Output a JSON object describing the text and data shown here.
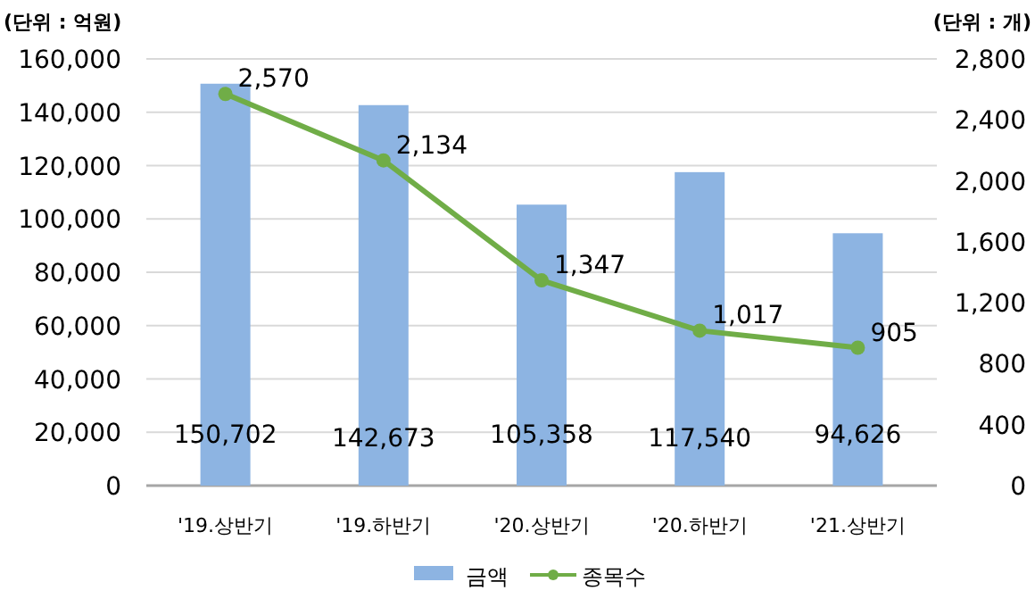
{
  "chart_data": {
    "type": "bar",
    "ylabel": "(단위 : 억원)",
    "y2label": "(단위 : 개)",
    "categories": [
      "'19.상반기",
      "'19.하반기",
      "'20.상반기",
      "'20.하반기",
      "'21.상반기"
    ],
    "series": [
      {
        "name": "금액",
        "color": "#8db4e2",
        "values": [
          150702,
          142673,
          105358,
          117540,
          94626
        ],
        "value_labels": [
          "150,702",
          "142,673",
          "105,358",
          "117,540",
          "94,626"
        ]
      },
      {
        "name": "종목수",
        "type": "line",
        "axis": "y2",
        "color": "#70ad47",
        "marker": "circle",
        "values": [
          2570,
          2134,
          1347,
          1017,
          905
        ],
        "value_labels": [
          "2,570",
          "2,134",
          "1,347",
          "1,017",
          "905"
        ]
      }
    ],
    "ylim": [
      0,
      160000
    ],
    "yticks": [
      {
        "value": 0,
        "label": "0"
      },
      {
        "value": 20000,
        "label": "20,000"
      },
      {
        "value": 40000,
        "label": "40,000"
      },
      {
        "value": 60000,
        "label": "60,000"
      },
      {
        "value": 80000,
        "label": "80,000"
      },
      {
        "value": 100000,
        "label": "100,000"
      },
      {
        "value": 120000,
        "label": "120,000"
      },
      {
        "value": 140000,
        "label": "140,000"
      },
      {
        "value": 160000,
        "label": "160,000"
      }
    ],
    "y2lim": [
      0,
      2800
    ],
    "y2ticks": [
      {
        "value": 0,
        "label": "0"
      },
      {
        "value": 400,
        "label": "400"
      },
      {
        "value": 800,
        "label": "800"
      },
      {
        "value": 1200,
        "label": "1,200"
      },
      {
        "value": 1600,
        "label": "1,600"
      },
      {
        "value": 2000,
        "label": "2,000"
      },
      {
        "value": 2400,
        "label": "2,400"
      },
      {
        "value": 2800,
        "label": "2,800"
      }
    ],
    "grid": "y",
    "legend": "bottom"
  }
}
